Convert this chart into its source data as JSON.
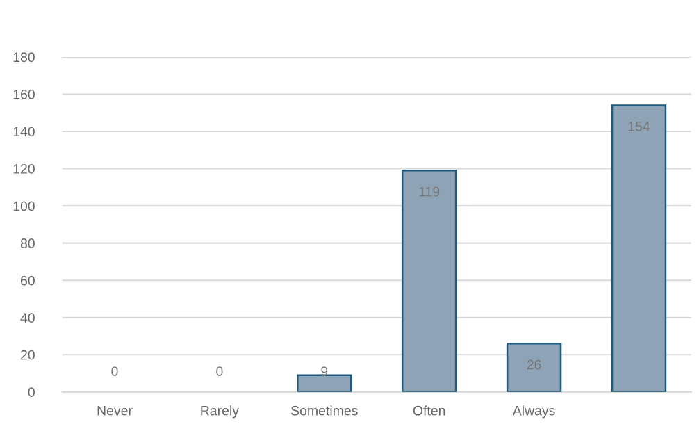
{
  "chart_data": {
    "type": "bar",
    "categories": [
      "Never",
      "Rarely",
      "Sometimes",
      "Often",
      "Always",
      null
    ],
    "values": [
      0,
      0,
      9,
      119,
      26,
      154
    ],
    "color": "#8ea4b6",
    "ylim": [
      0,
      180
    ],
    "yticks": [
      0,
      20,
      40,
      60,
      80,
      100,
      120,
      140,
      160,
      180
    ],
    "grid": "y",
    "data_labels": true,
    "legend": false
  }
}
